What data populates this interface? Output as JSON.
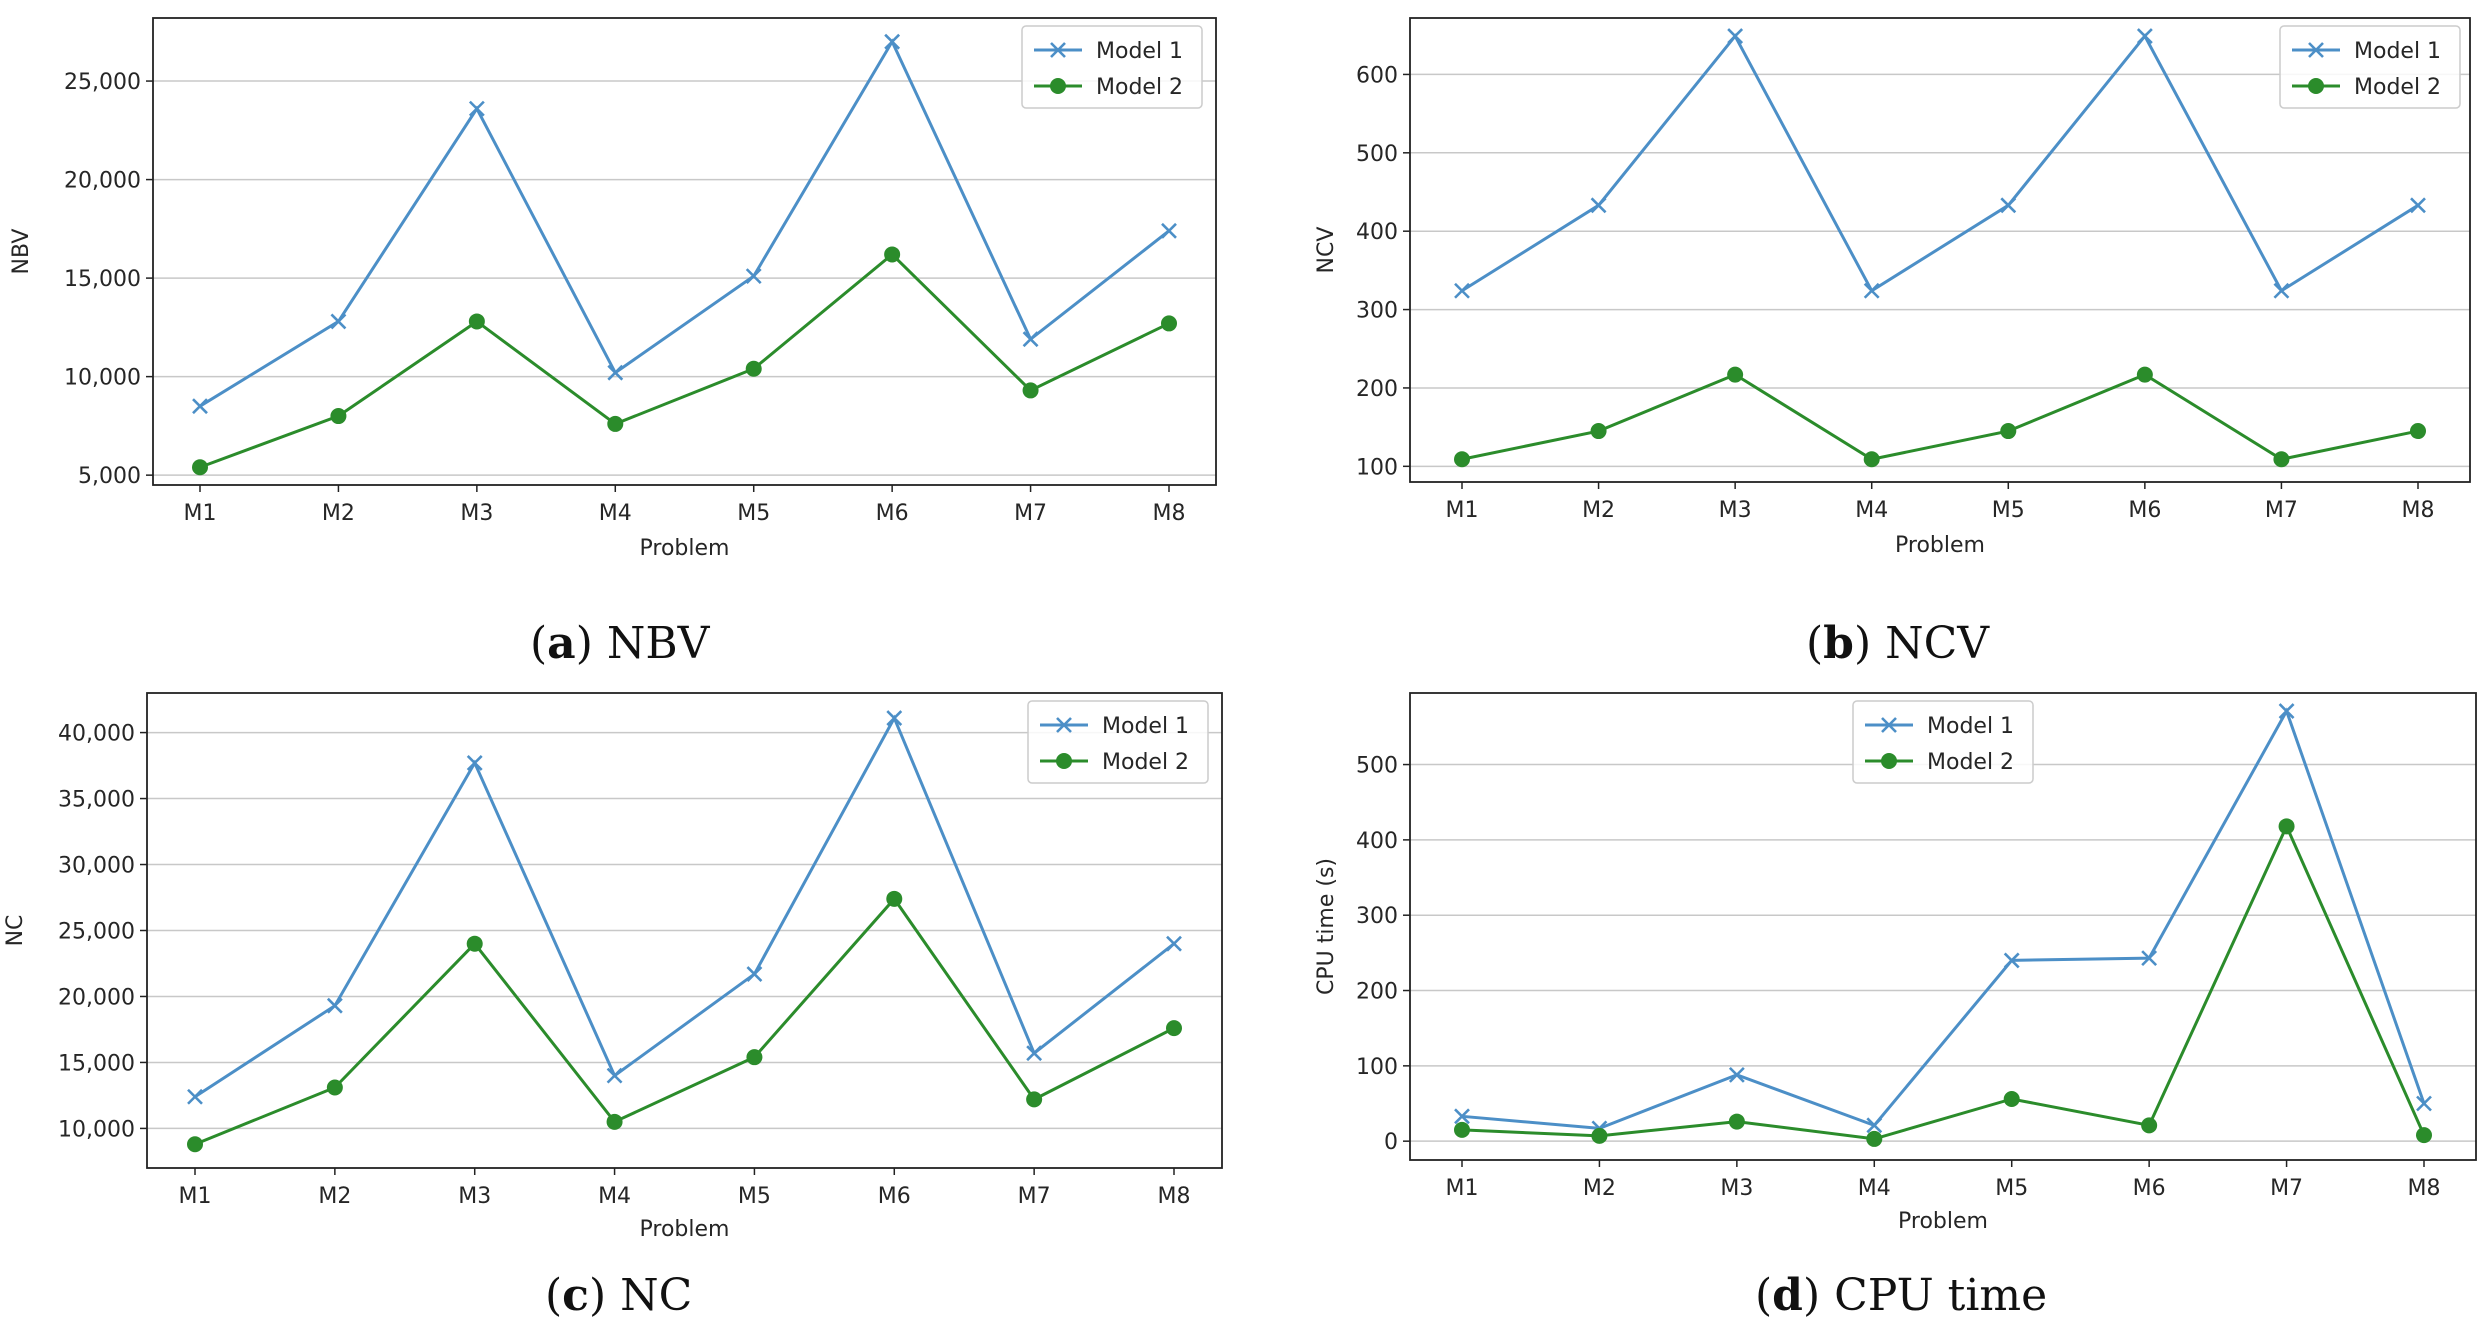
{
  "colors": {
    "model1": "#4c8fc7",
    "model2": "#2b8c2b",
    "grid": "#c8c8c8",
    "axes": "#222222"
  },
  "chart_data": [
    {
      "type": "line",
      "caption_letter": "a",
      "caption_text": "NBV",
      "categories": [
        "M1",
        "M2",
        "M3",
        "M4",
        "M5",
        "M6",
        "M7",
        "M8"
      ],
      "xlabel": "Problem",
      "ylabel": "NBV",
      "ylim": [
        4500,
        28200
      ],
      "yticks": [
        5000,
        10000,
        15000,
        20000,
        25000
      ],
      "ytick_labels": [
        "5,000",
        "10,000",
        "15,000",
        "20,000",
        "25,000"
      ],
      "grid": "y",
      "legend": "top-right",
      "series": [
        {
          "name": "Model 1",
          "marker": "x",
          "values": [
            8500,
            12800,
            23600,
            10200,
            15100,
            27000,
            11900,
            17400
          ]
        },
        {
          "name": "Model 2",
          "marker": "o",
          "values": [
            5400,
            8000,
            12800,
            7600,
            10400,
            16200,
            9300,
            12700
          ]
        }
      ]
    },
    {
      "type": "line",
      "caption_letter": "b",
      "caption_text": "NCV",
      "categories": [
        "M1",
        "M2",
        "M3",
        "M4",
        "M5",
        "M6",
        "M7",
        "M8"
      ],
      "xlabel": "Problem",
      "ylabel": "NCV",
      "ylim": [
        80,
        672
      ],
      "yticks": [
        100,
        200,
        300,
        400,
        500,
        600
      ],
      "ytick_labels": [
        "100",
        "200",
        "300",
        "400",
        "500",
        "600"
      ],
      "grid": "y",
      "legend": "top-right",
      "series": [
        {
          "name": "Model 1",
          "marker": "x",
          "values": [
            324,
            433,
            649,
            324,
            433,
            649,
            324,
            433
          ]
        },
        {
          "name": "Model 2",
          "marker": "o",
          "values": [
            109,
            145,
            217,
            109,
            145,
            217,
            109,
            145
          ]
        }
      ]
    },
    {
      "type": "line",
      "caption_letter": "c",
      "caption_text": "NC",
      "categories": [
        "M1",
        "M2",
        "M3",
        "M4",
        "M5",
        "M6",
        "M7",
        "M8"
      ],
      "xlabel": "Problem",
      "ylabel": "NC",
      "ylim": [
        7000,
        43000
      ],
      "yticks": [
        10000,
        15000,
        20000,
        25000,
        30000,
        35000,
        40000
      ],
      "ytick_labels": [
        "10,000",
        "15,000",
        "20,000",
        "25,000",
        "30,000",
        "35,000",
        "40,000"
      ],
      "grid": "y",
      "legend": "top-right",
      "series": [
        {
          "name": "Model 1",
          "marker": "x",
          "values": [
            12400,
            19300,
            37700,
            14000,
            21700,
            41100,
            15700,
            24000
          ]
        },
        {
          "name": "Model 2",
          "marker": "o",
          "values": [
            8800,
            13100,
            24000,
            10500,
            15400,
            27400,
            12200,
            17600
          ]
        }
      ]
    },
    {
      "type": "line",
      "caption_letter": "d",
      "caption_text": "CPU time",
      "categories": [
        "M1",
        "M2",
        "M3",
        "M4",
        "M5",
        "M6",
        "M7",
        "M8"
      ],
      "xlabel": "Problem",
      "ylabel": "CPU time (s)",
      "ylim": [
        -25,
        595
      ],
      "yticks": [
        0,
        100,
        200,
        300,
        400,
        500
      ],
      "ytick_labels": [
        "0",
        "100",
        "200",
        "300",
        "400",
        "500"
      ],
      "grid": "y",
      "legend": "top-center",
      "series": [
        {
          "name": "Model 1",
          "marker": "x",
          "values": [
            33,
            17,
            88,
            21,
            240,
            243,
            571,
            50
          ]
        },
        {
          "name": "Model 2",
          "marker": "o",
          "values": [
            15,
            7,
            26,
            3,
            56,
            21,
            418,
            8
          ]
        }
      ]
    }
  ]
}
